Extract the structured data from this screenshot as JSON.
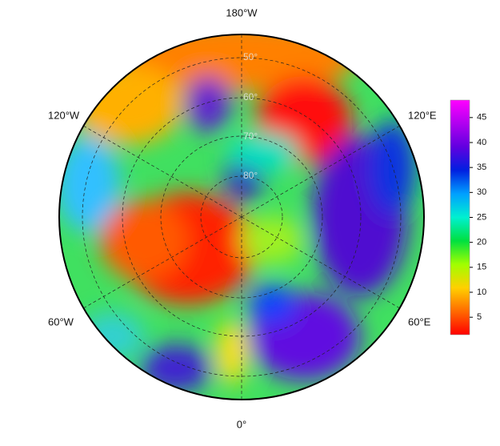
{
  "map": {
    "longitude_labels": [
      "180°W",
      "120°E",
      "60°E",
      "0°",
      "60°W",
      "120°W"
    ],
    "latitude_labels": [
      "50°",
      "60°",
      "70°",
      "80°"
    ]
  },
  "colorbar": {
    "lim": [
      1.5,
      48.5
    ],
    "ticks": [
      5,
      10,
      15,
      20,
      25,
      30,
      35,
      40,
      45
    ],
    "colors": [
      "#ff0000",
      "#ff6a00",
      "#ffd000",
      "#a0ff00",
      "#00e040",
      "#00f0d0",
      "#00a0ff",
      "#0020e0",
      "#6000e0",
      "#b000f0",
      "#ff00ff"
    ]
  }
}
